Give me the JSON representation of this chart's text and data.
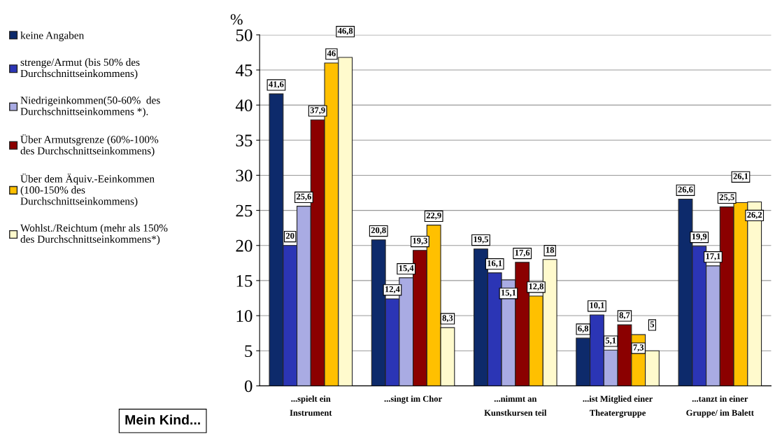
{
  "chart_data": {
    "type": "bar",
    "ylabel": "%",
    "categories": [
      "...spielt ein\nInstrument",
      "...singt im Chor",
      "...nimmt an\nKunstkursen teil",
      "...ist Mitglied einer\nTheatergruppe",
      "...tanzt in einer\nGruppe/ im Balett"
    ],
    "series": [
      {
        "name": "keine Angaben",
        "color": "#0d2a6b",
        "values": [
          41.6,
          20.8,
          19.5,
          6.8,
          26.6
        ],
        "value_labels": [
          "41,6",
          "20,8",
          "19,5",
          "6,8",
          "26,6"
        ]
      },
      {
        "name": "strenge/Armut (bis 50% des\nDurchschnittseinkommens)",
        "color": "#2b35b5",
        "values": [
          20,
          12.4,
          16.1,
          10.1,
          19.9
        ],
        "value_labels": [
          "20",
          "12,4",
          "16,1",
          "10,1",
          "19,9"
        ]
      },
      {
        "name": "Niedrigeinkommen(50-60%  des\nDurchschnittseinkommens *).",
        "color": "#a9abe3",
        "values": [
          25.6,
          15.4,
          15.1,
          5.1,
          17.1
        ],
        "value_labels": [
          "25,6",
          "15,4",
          "15,1",
          "5,1",
          "17,1"
        ]
      },
      {
        "name": "Über Armutsgrenze (60%-100%\ndes Durchschnittseinkommens)",
        "color": "#8b0000",
        "values": [
          37.9,
          19.3,
          17.6,
          8.7,
          25.5
        ],
        "value_labels": [
          "37,9",
          "19,3",
          "17,6",
          "8,7",
          "25,5"
        ]
      },
      {
        "name": "Über dem Äquiv.-Eeinkommen\n(100-150% des\nDurchschnittseinkommens)",
        "color": "#ffc000",
        "values": [
          46,
          22.9,
          12.8,
          7.3,
          26.1
        ],
        "value_labels": [
          "46",
          "22,9",
          "12,8",
          "7,3",
          "26,1"
        ]
      },
      {
        "name": "Wohlst./Reichtum (mehr als 150%\ndes Durchschnittseinkommens*)",
        "color": "#fffacd",
        "values": [
          46.8,
          8.3,
          18,
          5,
          26.2
        ],
        "value_labels": [
          "46,8",
          "8,3",
          "18",
          "5",
          "26,2"
        ]
      }
    ],
    "ylim": [
      0,
      50
    ],
    "yticks": [
      0,
      5,
      10,
      15,
      20,
      25,
      30,
      35,
      40,
      45,
      50
    ],
    "grid": "y",
    "legend": "left",
    "annotations": [
      "Mein Kind..."
    ]
  }
}
